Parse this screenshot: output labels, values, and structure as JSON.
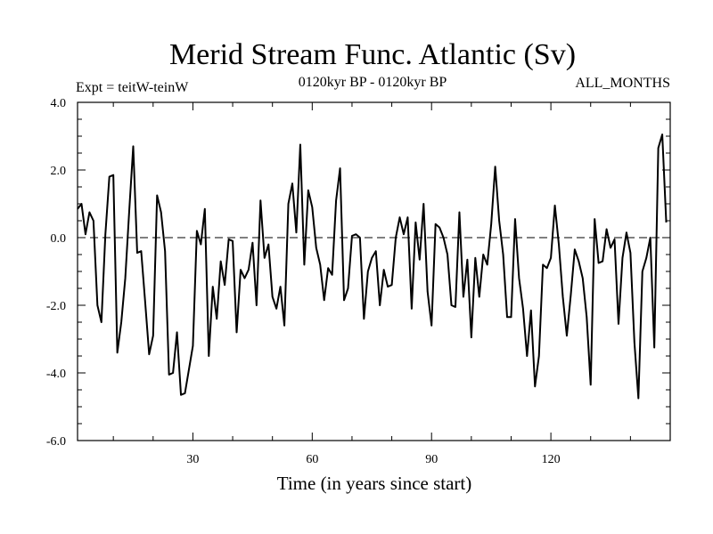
{
  "chart_data": {
    "type": "line",
    "title": "Merid Stream Func. Atlantic (Sv)",
    "subtitle_left": "Expt = teitW-teinW",
    "subtitle_center": "0120kyr BP - 0120kyr BP",
    "subtitle_right": "ALL_MONTHS",
    "xlabel": "Time (in years since start)",
    "ylabel": "",
    "xlim": [
      1,
      150
    ],
    "ylim": [
      -6.0,
      4.0
    ],
    "x_ticks": [
      30,
      60,
      90,
      120
    ],
    "x_tick_labels": [
      "30",
      "60",
      "90",
      "120"
    ],
    "y_ticks": [
      -6.0,
      -4.0,
      -2.0,
      0.0,
      2.0,
      4.0
    ],
    "y_tick_labels": [
      "-6.0",
      "-4.0",
      "-2.0",
      "0.0",
      "2.0",
      "4.0"
    ],
    "reference_line": 0.0,
    "series": [
      {
        "name": "Merid Stream Func. Atlantic",
        "color": "#000000",
        "x_start": 1,
        "x_step": 1,
        "values": [
          0.85,
          1.0,
          0.1,
          0.75,
          0.5,
          -2.0,
          -2.5,
          0.1,
          1.8,
          1.85,
          -3.4,
          -2.5,
          -1.2,
          0.8,
          2.7,
          -0.45,
          -0.4,
          -1.9,
          -3.45,
          -2.9,
          1.25,
          0.75,
          -0.4,
          -4.05,
          -4.0,
          -2.8,
          -4.65,
          -4.6,
          -3.9,
          -3.2,
          0.2,
          -0.2,
          0.85,
          -3.5,
          -1.45,
          -2.4,
          -0.7,
          -1.4,
          -0.05,
          -0.1,
          -2.8,
          -0.95,
          -1.2,
          -0.95,
          -0.15,
          -2.0,
          1.1,
          -0.6,
          -0.2,
          -1.75,
          -2.1,
          -1.45,
          -2.6,
          1.0,
          1.6,
          0.15,
          2.75,
          -0.8,
          1.4,
          0.9,
          -0.3,
          -0.8,
          -1.85,
          -0.9,
          -1.1,
          1.1,
          2.05,
          -1.85,
          -1.5,
          0.05,
          0.1,
          0.0,
          -2.4,
          -1.0,
          -0.6,
          -0.4,
          -2.0,
          -0.95,
          -1.45,
          -1.4,
          0.0,
          0.6,
          0.1,
          0.6,
          -2.1,
          0.45,
          -0.65,
          1.0,
          -1.6,
          -2.6,
          0.4,
          0.3,
          0.0,
          -0.5,
          -2.0,
          -2.05,
          0.75,
          -1.75,
          -0.65,
          -2.95,
          -0.6,
          -1.75,
          -0.5,
          -0.8,
          0.4,
          2.1,
          0.5,
          -0.5,
          -2.35,
          -2.35,
          0.55,
          -1.2,
          -2.1,
          -3.5,
          -2.15,
          -4.4,
          -3.5,
          -0.8,
          -0.9,
          -0.6,
          0.95,
          -0.2,
          -1.75,
          -2.9,
          -1.7,
          -0.35,
          -0.7,
          -1.2,
          -2.35,
          -4.35,
          0.55,
          -0.75,
          -0.7,
          0.25,
          -0.3,
          -0.05,
          -2.55,
          -0.6,
          0.15,
          -0.45,
          -3.1,
          -4.75,
          -1.0,
          -0.6,
          0.0,
          -3.25,
          2.65,
          3.05,
          0.45
        ]
      }
    ]
  }
}
